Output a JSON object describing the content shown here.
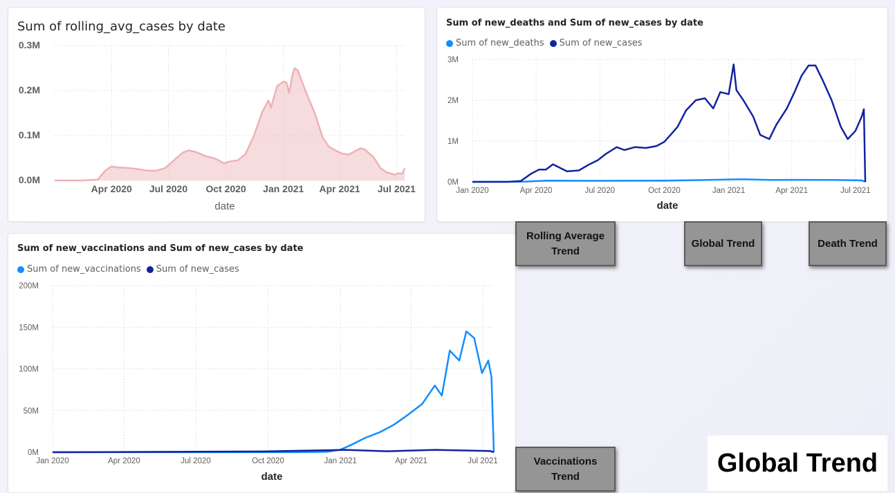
{
  "chart_data": [
    {
      "type": "area",
      "title": "Sum of rolling_avg_cases by date",
      "xlabel": "date",
      "ylabel": "",
      "x_ticks": [
        "Apr 2020",
        "Jul 2020",
        "Oct 2020",
        "Jan 2021",
        "Apr 2021",
        "Jul 2021"
      ],
      "y_ticks": [
        "0.0M",
        "0.1M",
        "0.2M",
        "0.3M"
      ],
      "ylim": [
        0,
        300000
      ],
      "x_domain": [
        "2020-01-01",
        "2021-07-15"
      ],
      "grid": true,
      "series": [
        {
          "color": "#eeb1b6",
          "points": [
            [
              "2020-01-01",
              0
            ],
            [
              "2020-02-15",
              0
            ],
            [
              "2020-03-10",
              2000
            ],
            [
              "2020-03-22",
              22000
            ],
            [
              "2020-04-01",
              31000
            ],
            [
              "2020-04-12",
              29000
            ],
            [
              "2020-04-25",
              28000
            ],
            [
              "2020-05-10",
              26000
            ],
            [
              "2020-05-28",
              22000
            ],
            [
              "2020-06-12",
              22000
            ],
            [
              "2020-06-25",
              27000
            ],
            [
              "2020-07-10",
              45000
            ],
            [
              "2020-07-25",
              63000
            ],
            [
              "2020-08-03",
              67000
            ],
            [
              "2020-08-15",
              63000
            ],
            [
              "2020-08-28",
              55000
            ],
            [
              "2020-09-05",
              52000
            ],
            [
              "2020-09-15",
              48000
            ],
            [
              "2020-09-28",
              38000
            ],
            [
              "2020-10-06",
              42000
            ],
            [
              "2020-10-20",
              45000
            ],
            [
              "2020-11-01",
              58000
            ],
            [
              "2020-11-15",
              100000
            ],
            [
              "2020-11-28",
              152000
            ],
            [
              "2020-12-08",
              178000
            ],
            [
              "2020-12-12",
              162000
            ],
            [
              "2020-12-22",
              210000
            ],
            [
              "2021-01-01",
              220000
            ],
            [
              "2021-01-06",
              218000
            ],
            [
              "2021-01-10",
              195000
            ],
            [
              "2021-01-16",
              238000
            ],
            [
              "2021-01-19",
              250000
            ],
            [
              "2021-01-24",
              245000
            ],
            [
              "2021-02-05",
              200000
            ],
            [
              "2021-02-20",
              150000
            ],
            [
              "2021-03-05",
              95000
            ],
            [
              "2021-03-15",
              75000
            ],
            [
              "2021-03-28",
              65000
            ],
            [
              "2021-04-05",
              60000
            ],
            [
              "2021-04-15",
              57000
            ],
            [
              "2021-04-25",
              65000
            ],
            [
              "2021-05-05",
              72000
            ],
            [
              "2021-05-12",
              68000
            ],
            [
              "2021-05-25",
              52000
            ],
            [
              "2021-06-05",
              28000
            ],
            [
              "2021-06-15",
              18000
            ],
            [
              "2021-06-28",
              13000
            ],
            [
              "2021-07-03",
              16000
            ],
            [
              "2021-07-10",
              15000
            ],
            [
              "2021-07-14",
              27000
            ]
          ]
        }
      ]
    },
    {
      "type": "line",
      "title": "Sum of new_deaths and Sum of new_cases by date",
      "xlabel": "date",
      "ylabel": "",
      "x_ticks": [
        "Jan 2020",
        "Apr 2020",
        "Jul 2020",
        "Oct 2020",
        "Jan 2021",
        "Apr 2021",
        "Jul 2021"
      ],
      "y_ticks": [
        "0M",
        "1M",
        "2M",
        "3M"
      ],
      "ylim": [
        0,
        3000000
      ],
      "x_domain": [
        "2020-01-01",
        "2021-07-15"
      ],
      "grid": true,
      "legend": "top-left",
      "series": [
        {
          "name": "Sum of new_deaths",
          "color": "#118dff",
          "points": [
            [
              "2020-01-01",
              0
            ],
            [
              "2020-03-15",
              5000
            ],
            [
              "2020-04-15",
              30000
            ],
            [
              "2020-07-01",
              25000
            ],
            [
              "2020-10-01",
              30000
            ],
            [
              "2020-12-01",
              45000
            ],
            [
              "2021-01-20",
              65000
            ],
            [
              "2021-03-01",
              45000
            ],
            [
              "2021-04-20",
              50000
            ],
            [
              "2021-06-01",
              45000
            ],
            [
              "2021-07-10",
              35000
            ],
            [
              "2021-07-15",
              0
            ]
          ]
        },
        {
          "name": "Sum of new_cases",
          "color": "#12239e",
          "points": [
            [
              "2020-01-01",
              0
            ],
            [
              "2020-02-20",
              0
            ],
            [
              "2020-03-10",
              20000
            ],
            [
              "2020-03-25",
              200000
            ],
            [
              "2020-04-05",
              300000
            ],
            [
              "2020-04-15",
              300000
            ],
            [
              "2020-04-25",
              430000
            ],
            [
              "2020-05-15",
              260000
            ],
            [
              "2020-06-01",
              280000
            ],
            [
              "2020-06-15",
              420000
            ],
            [
              "2020-06-28",
              530000
            ],
            [
              "2020-07-10",
              690000
            ],
            [
              "2020-07-25",
              850000
            ],
            [
              "2020-08-05",
              780000
            ],
            [
              "2020-08-20",
              850000
            ],
            [
              "2020-09-05",
              830000
            ],
            [
              "2020-09-20",
              880000
            ],
            [
              "2020-10-01",
              980000
            ],
            [
              "2020-10-10",
              1150000
            ],
            [
              "2020-10-20",
              1350000
            ],
            [
              "2020-11-01",
              1750000
            ],
            [
              "2020-11-15",
              2000000
            ],
            [
              "2020-11-28",
              2050000
            ],
            [
              "2020-12-10",
              1800000
            ],
            [
              "2020-12-20",
              2200000
            ],
            [
              "2021-01-01",
              2150000
            ],
            [
              "2021-01-08",
              2880000
            ],
            [
              "2021-01-12",
              2250000
            ],
            [
              "2021-01-22",
              2000000
            ],
            [
              "2021-02-05",
              1600000
            ],
            [
              "2021-02-15",
              1150000
            ],
            [
              "2021-02-28",
              1050000
            ],
            [
              "2021-03-10",
              1400000
            ],
            [
              "2021-03-25",
              1800000
            ],
            [
              "2021-04-05",
              2200000
            ],
            [
              "2021-04-15",
              2600000
            ],
            [
              "2021-04-25",
              2850000
            ],
            [
              "2021-05-05",
              2850000
            ],
            [
              "2021-05-15",
              2500000
            ],
            [
              "2021-05-28",
              2000000
            ],
            [
              "2021-06-10",
              1350000
            ],
            [
              "2021-06-20",
              1050000
            ],
            [
              "2021-07-01",
              1250000
            ],
            [
              "2021-07-10",
              1600000
            ],
            [
              "2021-07-13",
              1780000
            ],
            [
              "2021-07-15",
              0
            ]
          ]
        }
      ]
    },
    {
      "type": "line",
      "title": "Sum of new_vaccinations and Sum of new_cases by date",
      "xlabel": "date",
      "ylabel": "",
      "x_ticks": [
        "Jan 2020",
        "Apr 2020",
        "Jul 2020",
        "Oct 2020",
        "Jan 2021",
        "Apr 2021",
        "Jul 2021"
      ],
      "y_ticks": [
        "0M",
        "50M",
        "100M",
        "150M",
        "200M"
      ],
      "ylim": [
        0,
        200000000
      ],
      "x_domain": [
        "2020-01-01",
        "2021-07-15"
      ],
      "grid": true,
      "legend": "top-left",
      "series": [
        {
          "name": "Sum of new_vaccinations",
          "color": "#118dff",
          "points": [
            [
              "2020-01-01",
              0
            ],
            [
              "2020-11-01",
              0
            ],
            [
              "2020-12-15",
              500000
            ],
            [
              "2021-01-01",
              3000000
            ],
            [
              "2021-01-15",
              9000000
            ],
            [
              "2021-02-01",
              17000000
            ],
            [
              "2021-02-20",
              24000000
            ],
            [
              "2021-03-10",
              33000000
            ],
            [
              "2021-03-28",
              45000000
            ],
            [
              "2021-04-15",
              58000000
            ],
            [
              "2021-05-01",
              80000000
            ],
            [
              "2021-05-10",
              68000000
            ],
            [
              "2021-05-20",
              122000000
            ],
            [
              "2021-06-01",
              110000000
            ],
            [
              "2021-06-10",
              145000000
            ],
            [
              "2021-06-20",
              137000000
            ],
            [
              "2021-06-30",
              95000000
            ],
            [
              "2021-07-08",
              110000000
            ],
            [
              "2021-07-12",
              90000000
            ],
            [
              "2021-07-15",
              0
            ]
          ]
        },
        {
          "name": "Sum of new_cases",
          "color": "#12239e",
          "points": [
            [
              "2020-01-01",
              0
            ],
            [
              "2020-03-15",
              200000
            ],
            [
              "2020-07-01",
              700000
            ],
            [
              "2020-10-01",
              1000000
            ],
            [
              "2021-01-08",
              2800000
            ],
            [
              "2021-03-01",
              1200000
            ],
            [
              "2021-05-01",
              2800000
            ],
            [
              "2021-07-10",
              1500000
            ],
            [
              "2021-07-15",
              0
            ]
          ]
        }
      ]
    }
  ],
  "buttons": {
    "rolling_average": "Rolling Average Trend",
    "global": "Global Trend",
    "death": "Death Trend",
    "vaccinations": "Vaccinations Trend"
  },
  "page_label": "Global Trend"
}
